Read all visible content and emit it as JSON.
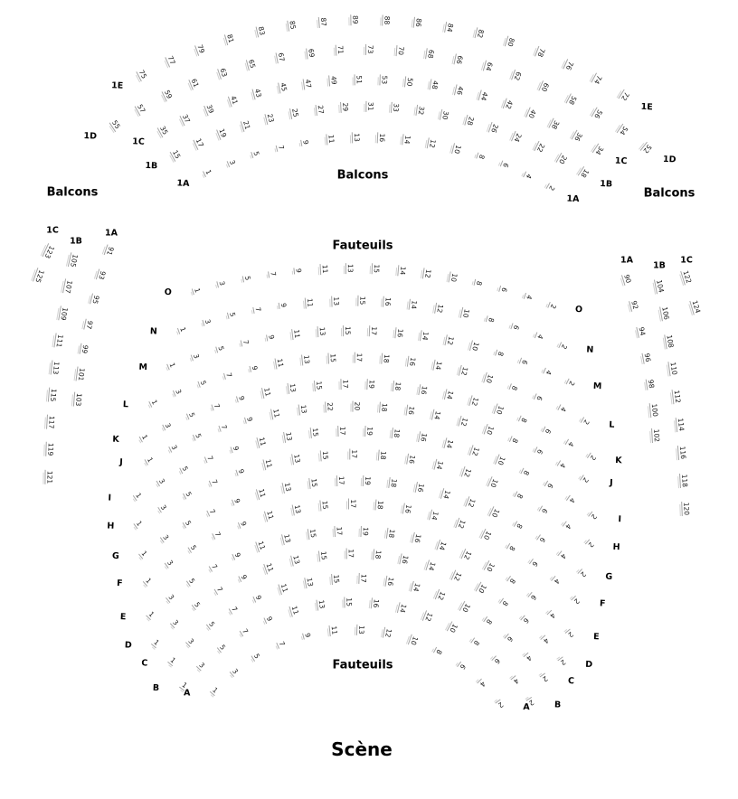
{
  "labels": {
    "balcons_left": "Balcons",
    "balcons_center": "Balcons",
    "balcons_right": "Balcons",
    "fauteuils_top": "Fauteuils",
    "fauteuils_bottom": "Fauteuils",
    "scene": "Scène"
  },
  "colors": {
    "seat_line": "#a5a5a5",
    "seat_line_light": "#d2d2d2",
    "text": "#000000"
  },
  "balcony": {
    "rows": [
      {
        "id": "1E",
        "seats": [
          75,
          77,
          79,
          81,
          83,
          85,
          87,
          89,
          88,
          86,
          84,
          82,
          80,
          78,
          76,
          74,
          72
        ]
      },
      {
        "id": "1D",
        "seats": [
          55,
          57,
          59,
          61,
          63,
          65,
          67,
          69,
          71,
          73,
          70,
          68,
          66,
          64,
          62,
          60,
          58,
          56,
          54,
          52
        ]
      },
      {
        "id": "1C",
        "seats": [
          35,
          37,
          39,
          41,
          43,
          45,
          47,
          49,
          51,
          53,
          50,
          48,
          46,
          44,
          42,
          40,
          38,
          36,
          34
        ]
      },
      {
        "id": "1B",
        "seats": [
          15,
          17,
          19,
          21,
          23,
          25,
          27,
          29,
          31,
          33,
          32,
          30,
          28,
          26,
          24,
          22,
          20,
          18
        ]
      },
      {
        "id": "1A",
        "seats": [
          1,
          3,
          5,
          7,
          9,
          11,
          13,
          16,
          14,
          12,
          10,
          8,
          6,
          4,
          2
        ]
      }
    ]
  },
  "orchestra": {
    "rows": [
      {
        "id": "O",
        "seats": [
          1,
          3,
          5,
          7,
          9,
          11,
          13,
          15,
          14,
          12,
          10,
          8,
          6,
          4,
          2
        ]
      },
      {
        "id": "N",
        "seats": [
          1,
          3,
          5,
          7,
          9,
          11,
          13,
          15,
          16,
          14,
          12,
          10,
          8,
          6,
          4,
          2
        ]
      },
      {
        "id": "M",
        "seats": [
          1,
          3,
          5,
          7,
          9,
          11,
          13,
          15,
          17,
          16,
          14,
          12,
          10,
          8,
          6,
          4,
          2
        ]
      },
      {
        "id": "L",
        "seats": [
          1,
          3,
          5,
          7,
          9,
          11,
          13,
          15,
          17,
          18,
          16,
          14,
          12,
          10,
          8,
          6,
          4,
          2
        ]
      },
      {
        "id": "K",
        "seats": [
          1,
          3,
          5,
          7,
          9,
          11,
          13,
          15,
          17,
          19,
          18,
          16,
          14,
          12,
          10,
          8,
          6,
          4,
          2
        ]
      },
      {
        "id": "J",
        "seats": [
          1,
          3,
          5,
          7,
          9,
          11,
          13,
          22,
          20,
          18,
          16,
          14,
          12,
          10,
          8,
          6,
          4,
          2
        ]
      },
      {
        "id": "I",
        "seats": [
          1,
          3,
          5,
          7,
          9,
          11,
          13,
          15,
          17,
          19,
          18,
          16,
          14,
          12,
          10,
          8,
          6,
          4,
          2
        ]
      },
      {
        "id": "H",
        "seats": [
          1,
          3,
          5,
          7,
          9,
          11,
          13,
          15,
          17,
          18,
          16,
          14,
          12,
          10,
          8,
          6,
          4,
          2
        ]
      },
      {
        "id": "G",
        "seats": [
          1,
          3,
          5,
          7,
          9,
          11,
          13,
          15,
          17,
          19,
          18,
          16,
          14,
          12,
          10,
          8,
          6,
          4,
          2
        ]
      },
      {
        "id": "F",
        "seats": [
          1,
          3,
          5,
          7,
          9,
          11,
          13,
          15,
          17,
          18,
          16,
          14,
          12,
          10,
          8,
          6,
          4,
          2
        ]
      },
      {
        "id": "E",
        "seats": [
          1,
          3,
          5,
          7,
          9,
          11,
          13,
          15,
          17,
          19,
          18,
          16,
          14,
          12,
          10,
          8,
          6,
          4,
          2
        ]
      },
      {
        "id": "D",
        "seats": [
          1,
          3,
          5,
          7,
          9,
          11,
          13,
          15,
          17,
          18,
          16,
          14,
          12,
          10,
          8,
          6,
          4,
          2
        ]
      },
      {
        "id": "C",
        "seats": [
          1,
          3,
          5,
          7,
          9,
          11,
          13,
          15,
          17,
          16,
          14,
          12,
          10,
          8,
          6,
          4,
          2
        ]
      },
      {
        "id": "B",
        "seats": [
          1,
          3,
          5,
          7,
          9,
          11,
          13,
          15,
          16,
          14,
          12,
          10,
          8,
          6,
          4,
          2
        ]
      },
      {
        "id": "A",
        "seats": [
          1,
          3,
          5,
          7,
          9,
          11,
          13,
          12,
          10,
          8,
          6,
          4,
          2
        ]
      }
    ]
  },
  "side_sections": {
    "left": [
      {
        "id": "1A",
        "seats": [
          91,
          93,
          95,
          97,
          99,
          101,
          103
        ]
      },
      {
        "id": "1B",
        "seats": [
          105,
          107,
          109,
          111,
          113,
          115,
          117,
          119,
          121
        ]
      },
      {
        "id": "1C",
        "seats": [
          123,
          125
        ]
      }
    ],
    "right": [
      {
        "id": "1A",
        "seats": [
          90,
          92,
          94,
          96,
          98,
          100,
          102
        ]
      },
      {
        "id": "1B",
        "seats": [
          104,
          106,
          108,
          110,
          112,
          114,
          116,
          118,
          120
        ]
      },
      {
        "id": "1C",
        "seats": [
          122,
          124
        ]
      }
    ]
  }
}
